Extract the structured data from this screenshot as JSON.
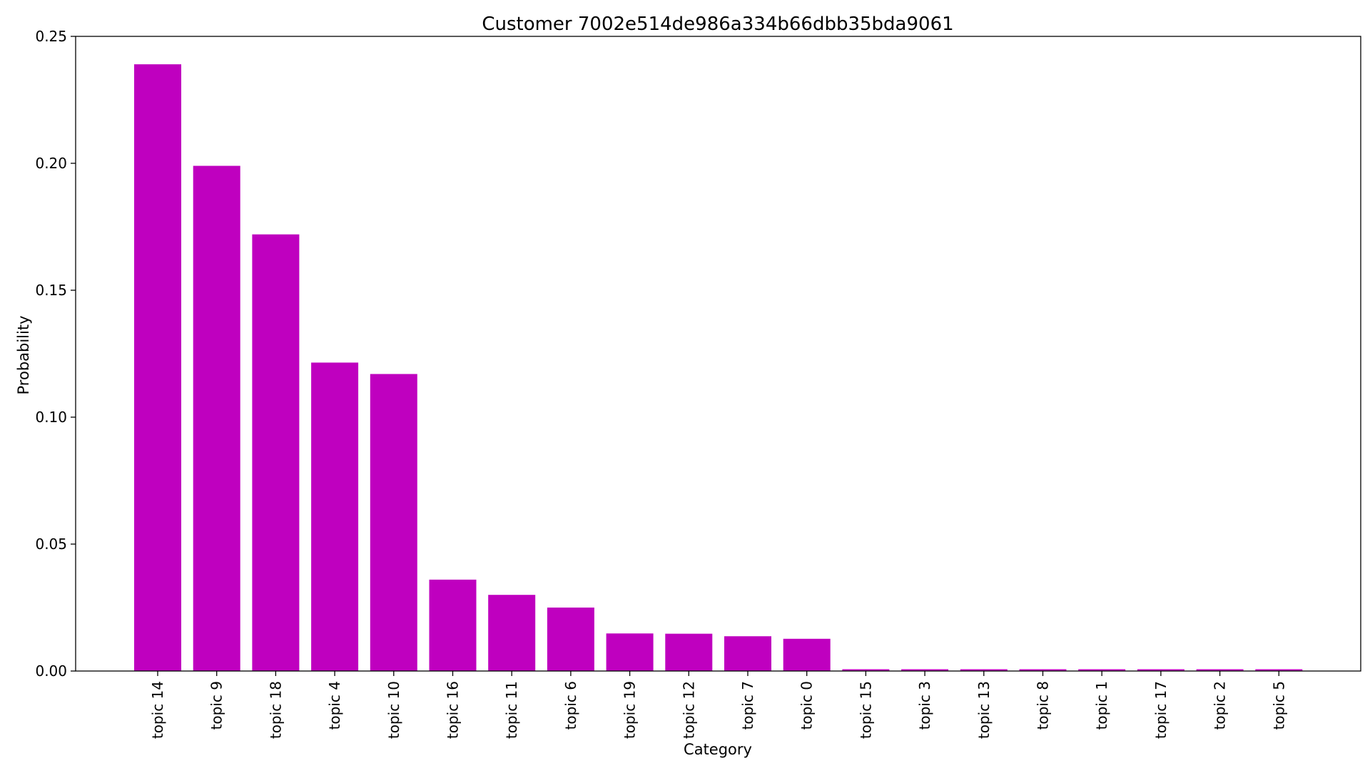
{
  "chart_data": {
    "type": "bar",
    "title": "Customer 7002e514de986a334b66dbb35bda9061",
    "xlabel": "Category",
    "ylabel": "Probability",
    "ylim": [
      0,
      0.25
    ],
    "yticks": [
      "0.00",
      "0.05",
      "0.10",
      "0.15",
      "0.20",
      "0.25"
    ],
    "grid": false,
    "bar_color": "#bf00bf",
    "categories": [
      "topic 14",
      "topic 9",
      "topic 18",
      "topic 4",
      "topic 10",
      "topic 16",
      "topic 11",
      "topic 6",
      "topic 19",
      "topic 12",
      "topic 7",
      "topic 0",
      "topic 15",
      "topic 3",
      "topic 13",
      "topic 8",
      "topic 1",
      "topic 17",
      "topic 2",
      "topic 5"
    ],
    "values": [
      0.239,
      0.199,
      0.172,
      0.1215,
      0.117,
      0.036,
      0.03,
      0.025,
      0.0148,
      0.0147,
      0.0137,
      0.0127,
      0.0007,
      0.0007,
      0.0007,
      0.0007,
      0.0007,
      0.0007,
      0.0007,
      0.0007
    ]
  }
}
